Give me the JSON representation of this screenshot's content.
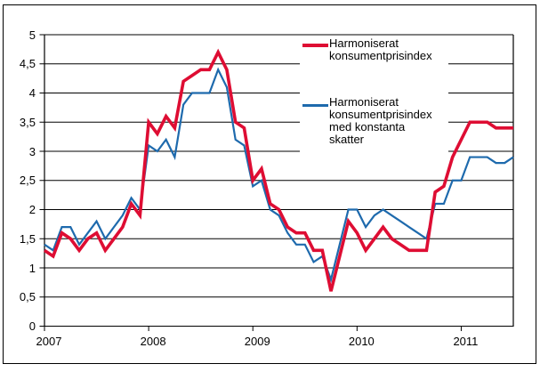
{
  "figure": {
    "background": "#ffffff",
    "border_color": "#000000",
    "gridline_color": "#000000"
  },
  "chart_data": {
    "type": "line",
    "title": "",
    "grid": "horizontal",
    "legend_position": "inside-top-right",
    "x_axis": {
      "tick_labels": [
        "2007",
        "2008",
        "2009",
        "2010",
        "2011"
      ],
      "range": "2007-01 to 2011-07"
    },
    "y_axis": {
      "min": 0,
      "max": 5,
      "step": 0.5,
      "tick_labels": [
        "0",
        "0,5",
        "1",
        "1,5",
        "2",
        "2,5",
        "3",
        "3,5",
        "4",
        "4,5",
        "5"
      ]
    },
    "x_months": [
      "2007-01",
      "2007-02",
      "2007-03",
      "2007-04",
      "2007-05",
      "2007-06",
      "2007-07",
      "2007-08",
      "2007-09",
      "2007-10",
      "2007-11",
      "2007-12",
      "2008-01",
      "2008-02",
      "2008-03",
      "2008-04",
      "2008-05",
      "2008-06",
      "2008-07",
      "2008-08",
      "2008-09",
      "2008-10",
      "2008-11",
      "2008-12",
      "2009-01",
      "2009-02",
      "2009-03",
      "2009-04",
      "2009-05",
      "2009-06",
      "2009-07",
      "2009-08",
      "2009-09",
      "2009-10",
      "2009-11",
      "2009-12",
      "2010-01",
      "2010-02",
      "2010-03",
      "2010-04",
      "2010-05",
      "2010-06",
      "2010-07",
      "2010-08",
      "2010-09",
      "2010-10",
      "2010-11",
      "2010-12",
      "2011-01",
      "2011-02",
      "2011-03",
      "2011-04",
      "2011-05",
      "2011-06",
      "2011-07"
    ],
    "series": [
      {
        "name": "Harmoniserat konsumentprisindex",
        "legend_lines": [
          "Harmoniserat",
          "konsumentprisindex"
        ],
        "color": "#de0d33",
        "stroke_width": 3.6,
        "values": [
          1.3,
          1.2,
          1.6,
          1.5,
          1.3,
          1.5,
          1.6,
          1.3,
          1.5,
          1.7,
          2.1,
          1.9,
          3.5,
          3.3,
          3.6,
          3.4,
          4.2,
          4.3,
          4.4,
          4.4,
          4.7,
          4.4,
          3.5,
          3.4,
          2.5,
          2.7,
          2.1,
          2.0,
          1.7,
          1.6,
          1.6,
          1.3,
          1.3,
          0.6,
          1.2,
          1.8,
          1.6,
          1.3,
          1.5,
          1.7,
          1.5,
          1.4,
          1.3,
          1.3,
          1.3,
          2.3,
          2.4,
          2.9,
          3.2,
          3.5,
          3.5,
          3.5,
          3.4,
          3.4,
          3.4
        ]
      },
      {
        "name": "Harmoniserat konsumentprisindex med konstanta skatter",
        "legend_lines": [
          "Harmoniserat",
          "konsumentprisindex",
          "med konstanta",
          "skatter"
        ],
        "color": "#1e6aad",
        "stroke_width": 2.2,
        "values": [
          1.4,
          1.3,
          1.7,
          1.7,
          1.4,
          1.6,
          1.8,
          1.5,
          1.7,
          1.9,
          2.2,
          2.0,
          3.1,
          3.0,
          3.2,
          2.9,
          3.8,
          4.0,
          4.0,
          4.0,
          4.4,
          4.1,
          3.2,
          3.1,
          2.4,
          2.5,
          2.0,
          1.9,
          1.6,
          1.4,
          1.4,
          1.1,
          1.2,
          0.8,
          1.4,
          2.0,
          2.0,
          1.7,
          1.9,
          2.0,
          1.9,
          1.8,
          1.7,
          1.6,
          1.5,
          2.1,
          2.1,
          2.5,
          2.5,
          2.9,
          2.9,
          2.9,
          2.8,
          2.8,
          2.9
        ]
      }
    ]
  }
}
